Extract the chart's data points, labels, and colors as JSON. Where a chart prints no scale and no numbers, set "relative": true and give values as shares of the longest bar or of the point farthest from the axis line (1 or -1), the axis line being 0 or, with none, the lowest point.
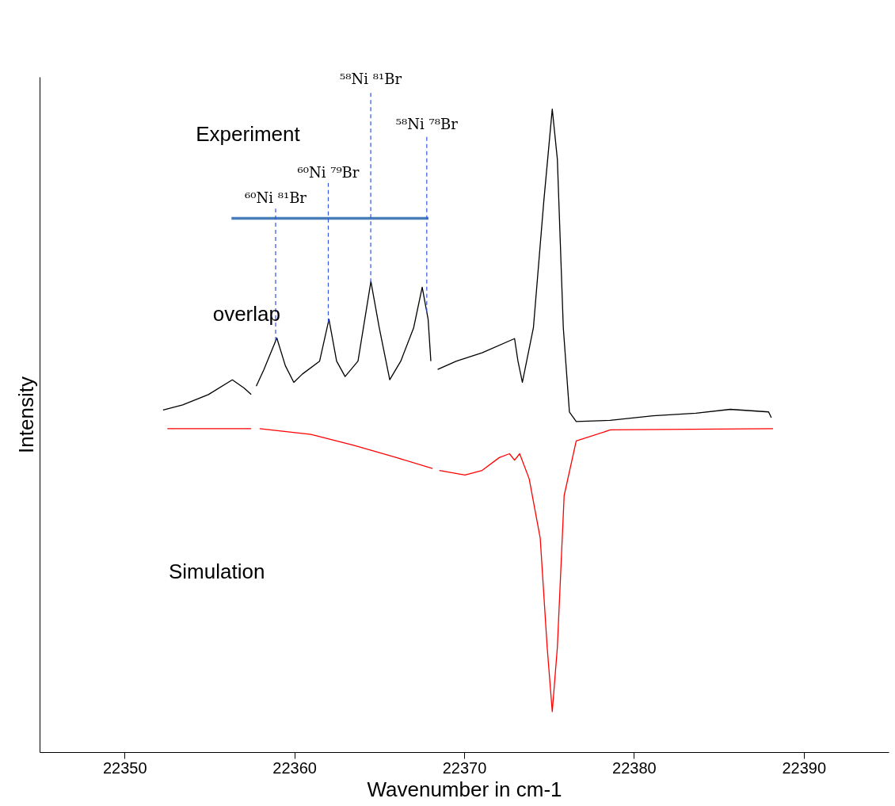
{
  "chart_data": {
    "type": "line",
    "relative": true,
    "xlabel": "Wavenumber in cm-1",
    "ylabel": "Intensity",
    "xlim": [
      22345,
      22395
    ],
    "xticks": [
      22350,
      22360,
      22370,
      22380,
      22390
    ],
    "grid": false,
    "marker": "none",
    "line_style": "solid",
    "annotations": [
      "Experiment",
      "overlap",
      "Simulation"
    ],
    "ref_lines": [
      {
        "axis": "x",
        "value": 22358.9,
        "label": "⁶⁰Ni ⁸¹Br",
        "color": "#3355dd",
        "line_style": "dashed"
      },
      {
        "axis": "x",
        "value": 22362.0,
        "label": "⁶⁰Ni ⁷⁹Br",
        "color": "#3355dd",
        "line_style": "dashed"
      },
      {
        "axis": "x",
        "value": 22364.5,
        "label": "⁵⁸Ni ⁸¹Br",
        "color": "#3355dd",
        "line_style": "dashed"
      },
      {
        "axis": "x",
        "value": 22367.8,
        "label": "⁵⁸Ni ⁷⁸Br",
        "color": "#3355dd",
        "line_style": "dashed"
      }
    ],
    "series": [
      {
        "color": "#4a7ebb",
        "x": [
          22356.3,
          22367.9
        ],
        "values": [
          0.83,
          0.83
        ]
      },
      {
        "color": "#000000",
        "x": [
          22352.27,
          22353.43,
          22354.94,
          22356.35,
          22357.05,
          22357.46,
          22357.6,
          22357.76,
          22358.21,
          22358.97,
          22359.47,
          22359.97,
          22360.48,
          22361.49,
          22362.04,
          22362.49,
          22362.99,
          22363.75,
          22364.51,
          22365.0,
          22365.62,
          22366.27,
          22367.03,
          22367.53,
          22367.88,
          22368.04,
          22368.1,
          22368.44,
          22369.55,
          22371.06,
          22372.97,
          22373.17,
          22373.43,
          22374.08,
          22374.69,
          22375.19,
          22375.49,
          22375.84,
          22376.2,
          22376.6,
          22378.6,
          22381.13,
          22383.65,
          22385.67,
          22387.93,
          22388.09
        ],
        "values": [
          0.532,
          0.54,
          0.556,
          0.579,
          0.566,
          0.556,
          null,
          0.569,
          0.595,
          0.644,
          0.601,
          0.575,
          0.588,
          0.608,
          0.673,
          0.608,
          0.584,
          0.608,
          0.732,
          0.66,
          0.579,
          0.608,
          0.66,
          0.723,
          0.673,
          0.608,
          null,
          0.595,
          0.608,
          0.621,
          0.643,
          0.608,
          0.575,
          0.66,
          0.856,
          1.0,
          0.922,
          0.66,
          0.529,
          0.514,
          0.516,
          0.523,
          0.527,
          0.533,
          0.529,
          0.52
        ]
      },
      {
        "color": "#ff0000",
        "x": [
          22352.52,
          22357.46,
          22357.6,
          22357.96,
          22360.98,
          22363.5,
          22366.02,
          22368.14,
          22368.3,
          22368.54,
          22370.05,
          22371.06,
          22372.07,
          22372.67,
          22372.97,
          22373.27,
          22373.83,
          22374.48,
          22374.89,
          22375.19,
          22375.49,
          22375.89,
          22376.6,
          22378.61,
          22388.19
        ],
        "values": [
          0.503,
          0.503,
          null,
          0.503,
          0.494,
          0.477,
          0.458,
          0.441,
          null,
          0.438,
          0.431,
          0.438,
          0.458,
          0.464,
          0.454,
          0.464,
          0.425,
          0.333,
          0.163,
          0.063,
          0.163,
          0.399,
          0.484,
          0.501,
          0.503
        ]
      }
    ]
  }
}
